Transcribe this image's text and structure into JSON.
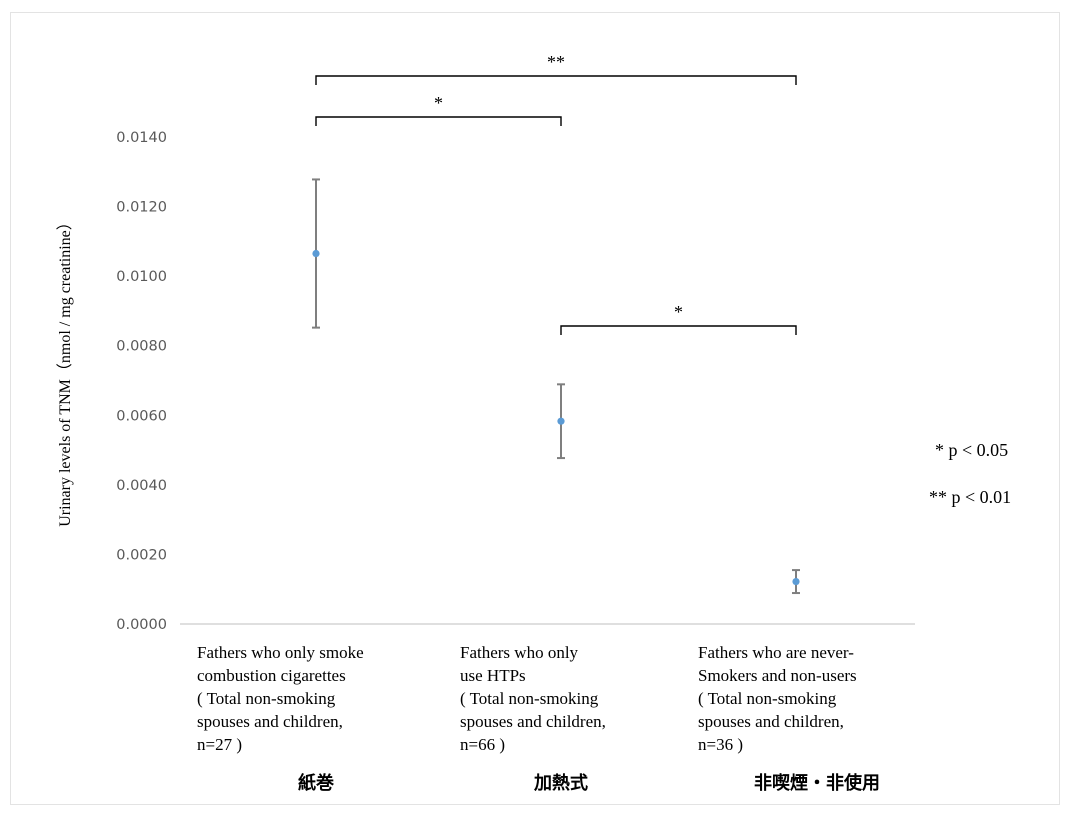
{
  "chart_data": {
    "type": "scatter",
    "ylabel": "Urinary levels of TNM（nmol / mg creatinine）",
    "ylim": [
      0,
      0.014
    ],
    "yticks": [
      "0.0000",
      "0.0020",
      "0.0040",
      "0.0060",
      "0.0080",
      "0.0100",
      "0.0120",
      "0.0140"
    ],
    "categories": [
      {
        "lines": [
          "Fathers who only smoke",
          "combustion cigarettes",
          "( Total non-smoking",
          "spouses and children,",
          " n=27 )"
        ],
        "jp": "紙巻",
        "value": 0.01065,
        "err_low": 0.00852,
        "err_high": 0.01278
      },
      {
        "lines": [
          "Fathers who only",
          "use HTPs",
          "( Total non-smoking",
          "spouses and children,",
          "n=66 )"
        ],
        "jp": "加熱式",
        "value": 0.00583,
        "err_low": 0.00477,
        "err_high": 0.00689
      },
      {
        "lines": [
          "Fathers who are never-",
          "Smokers and non-users",
          "( Total non-smoking",
          "spouses and children,",
          "n=36 )"
        ],
        "jp": "非喫煙・非使用",
        "value": 0.00122,
        "err_low": 0.00089,
        "err_high": 0.00155
      }
    ],
    "significance": [
      {
        "from": 0,
        "to": 2,
        "label": "**"
      },
      {
        "from": 0,
        "to": 1,
        "label": "*"
      },
      {
        "from": 1,
        "to": 2,
        "label": "*"
      }
    ],
    "legend": [
      "*  p < 0.05",
      "** p < 0.01"
    ],
    "colors": {
      "point": "#5b9bd5",
      "errorbar": "#7f7f7f",
      "axis": "#bfbfbf",
      "bracket": "#000000"
    }
  }
}
